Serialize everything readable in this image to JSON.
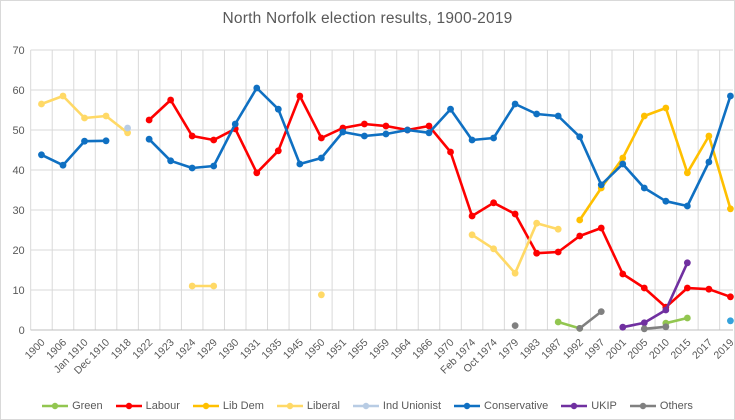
{
  "chart_data": {
    "type": "line",
    "title": "North Norfolk election results, 1900-2019",
    "xlabel": "",
    "ylabel": "",
    "ylim": [
      0,
      70
    ],
    "yticks": [
      0,
      10,
      20,
      30,
      40,
      50,
      60,
      70
    ],
    "grid": true,
    "legend_position": "bottom",
    "categories": [
      "1900",
      "1906",
      "Jan 1910",
      "Dec 1910",
      "1918",
      "1922",
      "1923",
      "1924",
      "1929",
      "1930",
      "1931",
      "1935",
      "1945",
      "1950",
      "1951",
      "1955",
      "1959",
      "1964",
      "1966",
      "1970",
      "Feb 1974",
      "Oct 1974",
      "1979",
      "1983",
      "1987",
      "1992",
      "1997",
      "2001",
      "2005",
      "2010",
      "2015",
      "2017",
      "2019"
    ],
    "colors": {
      "title_text": "#595959",
      "axis_text": "#595959",
      "gridline": "#d9d9d9",
      "axis_line": "#bfbfbf",
      "background": "#ffffff"
    },
    "series": [
      {
        "name": "Green",
        "key": "green",
        "color": "#92C650",
        "segments": [
          [
            [
              "1987",
              2
            ],
            [
              "1992",
              0.4
            ]
          ],
          [
            [
              "2010",
              1.7
            ],
            [
              "2015",
              3
            ]
          ]
        ]
      },
      {
        "name": "Labour",
        "key": "labour",
        "color": "#FE0000",
        "segments": [
          [
            [
              "1922",
              52.5
            ],
            [
              "1923",
              57.5
            ],
            [
              "1924",
              48.5
            ],
            [
              "1929",
              47.5
            ],
            [
              "1930",
              50.3
            ],
            [
              "1931",
              39.3
            ],
            [
              "1935",
              44.8
            ],
            [
              "1945",
              58.5
            ],
            [
              "1950",
              48
            ],
            [
              "1951",
              50.5
            ],
            [
              "1955",
              51.5
            ],
            [
              "1959",
              51
            ],
            [
              "1964",
              50
            ],
            [
              "1966",
              51
            ],
            [
              "1970",
              44.5
            ],
            [
              "Feb 1974",
              28.5
            ],
            [
              "Oct 1974",
              31.8
            ],
            [
              "1979",
              29
            ],
            [
              "1983",
              19.2
            ],
            [
              "1987",
              19.5
            ],
            [
              "1992",
              23.5
            ],
            [
              "1997",
              25.5
            ],
            [
              "2001",
              14
            ],
            [
              "2005",
              10.5
            ],
            [
              "2010",
              5.7
            ],
            [
              "2015",
              10.5
            ],
            [
              "2017",
              10.2
            ],
            [
              "2019",
              8.3
            ]
          ]
        ]
      },
      {
        "name": "Lib Dem",
        "key": "lib-dem",
        "color": "#FFC000",
        "segments": [
          [
            [
              "1992",
              27.5
            ],
            [
              "1997",
              35.5
            ],
            [
              "2001",
              43
            ],
            [
              "2005",
              53.5
            ],
            [
              "2010",
              55.5
            ],
            [
              "2015",
              39.3
            ],
            [
              "2017",
              48.5
            ],
            [
              "2019",
              30.3
            ]
          ]
        ]
      },
      {
        "name": "Liberal",
        "key": "liberal",
        "color": "#FFD966",
        "segments": [
          [
            [
              "1900",
              56.5
            ],
            [
              "1906",
              58.5
            ],
            [
              "Jan 1910",
              53
            ],
            [
              "Dec 1910",
              53.5
            ],
            [
              "1918",
              49.3
            ]
          ],
          [
            [
              "1924",
              11
            ],
            [
              "1929",
              11
            ]
          ],
          [
            [
              "1950",
              8.8
            ]
          ],
          [
            [
              "Feb 1974",
              23.8
            ],
            [
              "Oct 1974",
              20.3
            ],
            [
              "1979",
              14.2
            ],
            [
              "1983",
              26.7
            ],
            [
              "1987",
              25.2
            ]
          ]
        ]
      },
      {
        "name": "Ind Unionist",
        "key": "ind-unionist",
        "color": "#B8CCE4",
        "segments": [
          [
            [
              "1918",
              50.5
            ]
          ],
          [
            [
              "2019",
              2.3
            ]
          ]
        ],
        "point_color_overrides": {
          "2019": "#35A2DB"
        }
      },
      {
        "name": "Conservative",
        "key": "conservative",
        "color": "#0F70C2",
        "segments": [
          [
            [
              "1900",
              43.8
            ],
            [
              "1906",
              41.2
            ],
            [
              "Jan 1910",
              47.2
            ],
            [
              "Dec 1910",
              47.3
            ]
          ],
          [
            [
              "1922",
              47.7
            ],
            [
              "1923",
              42.3
            ],
            [
              "1924",
              40.5
            ],
            [
              "1929",
              41
            ],
            [
              "1930",
              51.5
            ],
            [
              "1931",
              60.5
            ],
            [
              "1935",
              55.2
            ],
            [
              "1945",
              41.5
            ],
            [
              "1950",
              43
            ],
            [
              "1951",
              49.5
            ],
            [
              "1955",
              48.5
            ],
            [
              "1959",
              49
            ],
            [
              "1964",
              50
            ],
            [
              "1966",
              49.3
            ],
            [
              "1970",
              55.2
            ],
            [
              "Feb 1974",
              47.5
            ],
            [
              "Oct 1974",
              48
            ],
            [
              "1979",
              56.5
            ],
            [
              "1983",
              54
            ],
            [
              "1987",
              53.5
            ],
            [
              "1992",
              48.3
            ],
            [
              "1997",
              36.3
            ],
            [
              "2001",
              41.5
            ],
            [
              "2005",
              35.5
            ],
            [
              "2010",
              32.2
            ],
            [
              "2015",
              31
            ],
            [
              "2017",
              42
            ],
            [
              "2019",
              58.5
            ]
          ]
        ]
      },
      {
        "name": "UKIP",
        "key": "ukip",
        "color": "#7030A0",
        "segments": [
          [
            [
              "2001",
              0.7
            ],
            [
              "2005",
              1.8
            ],
            [
              "2010",
              5
            ],
            [
              "2015",
              16.8
            ]
          ]
        ]
      },
      {
        "name": "Others",
        "key": "others",
        "color": "#808080",
        "segments": [
          [
            [
              "1979",
              1.1
            ]
          ],
          [
            [
              "1992",
              0.4
            ],
            [
              "1997",
              4.6
            ]
          ],
          [
            [
              "2005",
              0.3
            ],
            [
              "2010",
              0.8
            ]
          ]
        ]
      }
    ]
  }
}
